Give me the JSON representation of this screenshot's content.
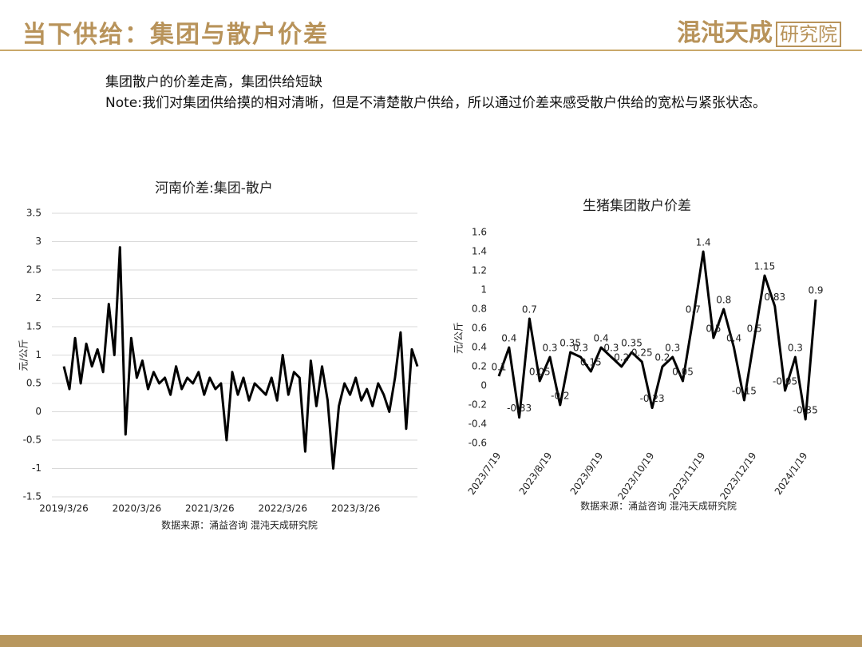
{
  "header": {
    "title": "当下供给：集团与散户价差",
    "logo": "混沌天成",
    "logo_box": "研究院"
  },
  "body": {
    "paragraphs": [
      "集团散户的价差走高，集团供给短缺",
      "Note:我们对集团供给摸的相对清晰，但是不清楚散户供给，所以通过价差来感受散户供给的宽松与紧张状态。"
    ]
  },
  "chart_data": [
    {
      "type": "line",
      "title": "河南价差:集团-散户",
      "y_label": "元/公斤",
      "source": "数据来源：涌益咨询 混沌天成研究院",
      "color": "#000000",
      "grid": true,
      "categories": [
        "2019/3/26",
        null,
        null,
        null,
        null,
        null,
        null,
        null,
        null,
        null,
        null,
        null,
        null,
        "2020/3/26",
        null,
        null,
        null,
        null,
        null,
        null,
        null,
        null,
        null,
        null,
        null,
        null,
        "2021/3/26",
        null,
        null,
        null,
        null,
        null,
        null,
        null,
        null,
        null,
        null,
        null,
        null,
        "2022/3/26",
        null,
        null,
        null,
        null,
        null,
        null,
        null,
        null,
        null,
        null,
        null,
        null,
        "2023/3/26",
        null,
        null,
        null,
        null,
        null,
        null,
        null,
        null,
        null,
        null,
        null
      ],
      "values": [
        0.8,
        0.4,
        1.3,
        0.5,
        1.2,
        0.8,
        1.1,
        0.7,
        1.9,
        1.0,
        2.9,
        -0.4,
        1.3,
        0.6,
        0.9,
        0.4,
        0.7,
        0.5,
        0.6,
        0.3,
        0.8,
        0.4,
        0.6,
        0.5,
        0.7,
        0.3,
        0.6,
        0.4,
        0.5,
        -0.5,
        0.7,
        0.3,
        0.6,
        0.2,
        0.5,
        0.4,
        0.3,
        0.6,
        0.2,
        1.0,
        0.3,
        0.7,
        0.6,
        -0.7,
        0.9,
        0.1,
        0.8,
        0.2,
        -1.0,
        0.1,
        0.5,
        0.3,
        0.6,
        0.2,
        0.4,
        0.1,
        0.5,
        0.3,
        0.0,
        0.6,
        1.4,
        -0.3,
        1.1,
        0.8
      ],
      "ylim": [
        -1.5,
        3.5
      ],
      "yticks": [
        -1.5,
        -1,
        -0.5,
        0,
        0.5,
        1,
        1.5,
        2,
        2.5,
        3,
        3.5
      ]
    },
    {
      "type": "line",
      "title": "生猪集团散户价差",
      "y_label": "元/公斤",
      "source": "数据来源：涌益咨询   混沌天成研究院",
      "color": "#000000",
      "grid": false,
      "show_values": true,
      "categories": [
        "2023/7/19",
        null,
        null,
        null,
        null,
        "2023/8/19",
        null,
        null,
        null,
        null,
        "2023/9/19",
        null,
        null,
        null,
        null,
        "2023/10/19",
        null,
        null,
        null,
        null,
        "2023/11/19",
        null,
        null,
        null,
        null,
        "2023/12/19",
        null,
        null,
        null,
        null,
        "2024/1/19",
        null
      ],
      "values": [
        0.1,
        0.4,
        -0.33,
        0.7,
        0.05,
        0.3,
        -0.2,
        0.35,
        0.3,
        0.15,
        0.4,
        0.3,
        0.2,
        0.35,
        0.25,
        -0.23,
        0.2,
        0.3,
        0.05,
        0.7,
        1.4,
        0.5,
        0.8,
        0.4,
        -0.15,
        0.5,
        1.15,
        0.83,
        -0.05,
        0.3,
        -0.35,
        0.9
      ],
      "ylim": [
        -0.6,
        1.6
      ],
      "yticks": [
        -0.6,
        -0.4,
        -0.2,
        0,
        0.2,
        0.4,
        0.6,
        0.8,
        1,
        1.2,
        1.4,
        1.6
      ]
    }
  ]
}
